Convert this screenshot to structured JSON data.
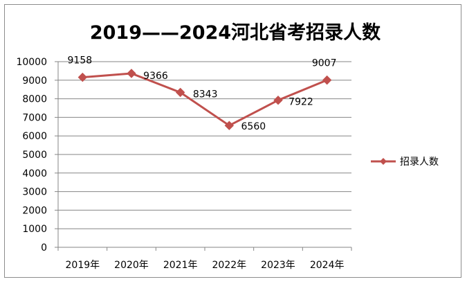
{
  "chart_data": {
    "type": "line",
    "title": "2019——2024河北省考招录人数",
    "categories": [
      "2019年",
      "2020年",
      "2021年",
      "2022年",
      "2023年",
      "2024年"
    ],
    "series": [
      {
        "name": "招录人数",
        "values": [
          9158,
          9366,
          8343,
          6560,
          7922,
          9007
        ],
        "color": "#c0504d"
      }
    ],
    "data_labels": [
      "9158",
      "9366",
      "8343",
      "6560",
      "7922",
      "9007"
    ],
    "y_ticks": [
      "0",
      "1000",
      "2000",
      "3000",
      "4000",
      "5000",
      "6000",
      "7000",
      "8000",
      "9000",
      "10000"
    ],
    "ylim": [
      0,
      10000
    ],
    "grid": true,
    "legend_position": "right",
    "xlabel": "",
    "ylabel": ""
  }
}
